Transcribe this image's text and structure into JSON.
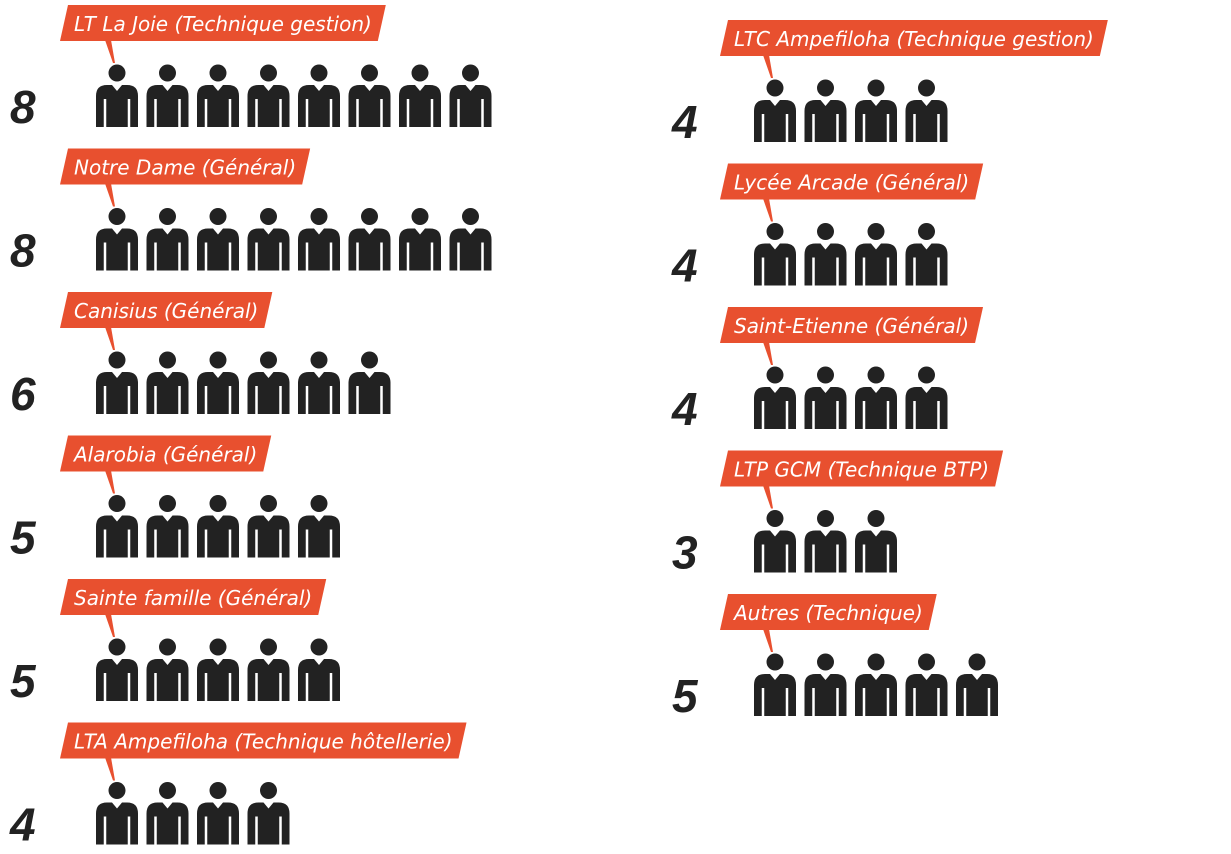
{
  "chart_data": {
    "type": "pictogram",
    "categories": [
      "LT La Joie (Technique gestion)",
      "Notre Dame (Général)",
      "Canisius (Général)",
      "Alarobia (Général)",
      "Sainte famille (Général)",
      "LTA Ampefiloha (Technique hôtellerie)",
      "LTC Ampefiloha (Technique gestion)",
      "Lycée Arcade (Général)",
      "Saint-Etienne (Général)",
      "LTP GCM (Technique BTP)",
      "Autres (Technique)"
    ],
    "values": [
      8,
      8,
      6,
      5,
      5,
      4,
      4,
      4,
      4,
      3,
      5
    ],
    "color": "#222222",
    "label_color": "#e8502f"
  }
}
